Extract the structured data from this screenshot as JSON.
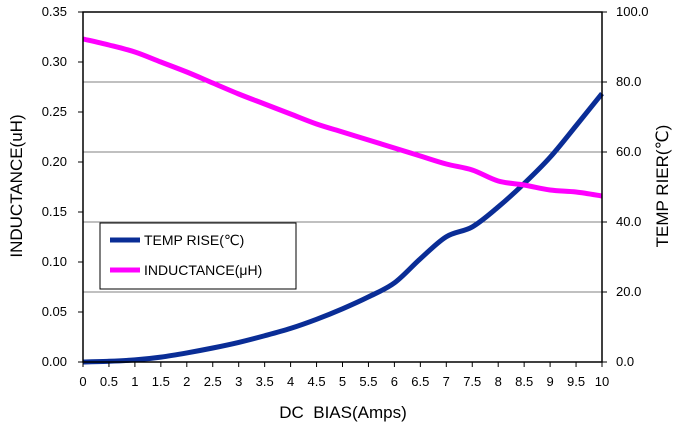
{
  "chart_data": {
    "type": "line",
    "xlabel": "DC  BIAS(Amps)",
    "ylabel_left": "INDUCTANCE(uH)",
    "ylabel_right": "TEMP RIER(℃)",
    "xlim": [
      0,
      10
    ],
    "ylim_left": [
      0,
      0.35
    ],
    "ylim_right": [
      0,
      100
    ],
    "x_ticks": [
      "0",
      "0.5",
      "1",
      "1.5",
      "2",
      "2.5",
      "3",
      "3.5",
      "4",
      "4.5",
      "5",
      "5.5",
      "6",
      "6.5",
      "7",
      "7.5",
      "8",
      "8.5",
      "9",
      "9.5",
      "10"
    ],
    "y_ticks_left": [
      "0.00",
      "0.05",
      "0.10",
      "0.15",
      "0.20",
      "0.25",
      "0.30",
      "0.35"
    ],
    "y_ticks_right": [
      "0.0",
      "20.0",
      "40.0",
      "60.0",
      "80.0",
      "100.0"
    ],
    "grid": "horizontal",
    "legend_position": "lower-left",
    "series": [
      {
        "name": "TEMP RISE(℃)",
        "axis": "right",
        "color": "#0a2d96",
        "x": [
          0,
          0.5,
          1,
          1.5,
          2,
          2.5,
          3,
          3.5,
          4,
          4.5,
          5,
          5.5,
          6,
          6.5,
          7,
          7.5,
          8,
          8.5,
          9,
          9.5,
          10
        ],
        "values": [
          0,
          0.2,
          0.6,
          1.4,
          2.6,
          4.0,
          5.6,
          7.5,
          9.6,
          12.2,
          15.2,
          18.6,
          22.6,
          29.5,
          35.8,
          38.6,
          44.3,
          51.0,
          58.5,
          67.5,
          76.7
        ]
      },
      {
        "name": "INDUCTANCE(μH)",
        "axis": "left",
        "color": "#ff00ff",
        "x": [
          0,
          0.5,
          1,
          1.5,
          2,
          2.5,
          3,
          3.5,
          4,
          4.5,
          5,
          5.5,
          6,
          6.5,
          7,
          7.5,
          8,
          8.5,
          9,
          9.5,
          10
        ],
        "values": [
          0.323,
          0.317,
          0.31,
          0.3,
          0.29,
          0.279,
          0.268,
          0.258,
          0.248,
          0.238,
          0.23,
          0.222,
          0.214,
          0.206,
          0.198,
          0.192,
          0.181,
          0.177,
          0.172,
          0.17,
          0.166
        ]
      }
    ]
  }
}
